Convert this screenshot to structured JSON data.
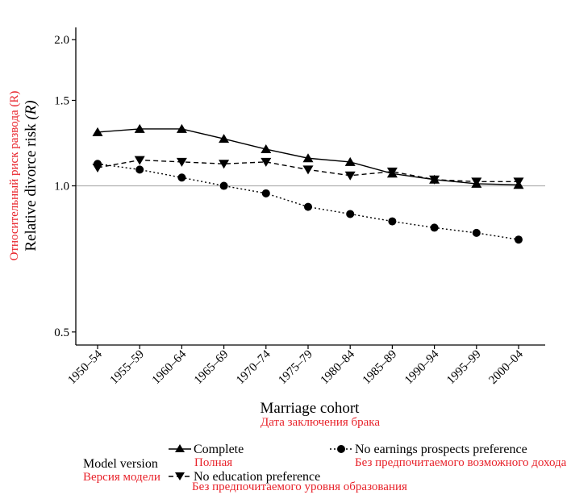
{
  "chart_data": {
    "type": "line",
    "title": "",
    "xlabel": "Marriage cohort",
    "xlabel_ru": "Дата заключения брака",
    "ylabel": "Relative divorce risk",
    "ylabel_symbol": "(R)",
    "ylabel_ru": "Относительный риск развода (R)",
    "y_scale": "log",
    "ylim": [
      0.47,
      2.12
    ],
    "yticks": [
      0.5,
      1.0,
      1.5,
      2.0
    ],
    "ytick_labels": [
      "0.5",
      "1.0",
      "1.5",
      "2.0"
    ],
    "reference_line": 1.0,
    "grid": false,
    "categories": [
      "1950–54",
      "1955–59",
      "1960–64",
      "1965–69",
      "1970–74",
      "1975–79",
      "1980–84",
      "1985–89",
      "1990–94",
      "1995–99",
      "2000–04"
    ],
    "legend_title": "Model version",
    "legend_title_ru": "Версия модели",
    "legend_position": "bottom",
    "series": [
      {
        "name": "Complete",
        "name_ru": "Полная",
        "line_style": "solid",
        "marker": "triangle-up",
        "values": [
          1.29,
          1.31,
          1.31,
          1.25,
          1.19,
          1.14,
          1.12,
          1.06,
          1.03,
          1.01,
          1.005
        ]
      },
      {
        "name": "No education preference",
        "name_ru": "Без предпочитаемого уровня образования",
        "line_style": "dashed",
        "marker": "triangle-down",
        "values": [
          1.09,
          1.13,
          1.12,
          1.11,
          1.12,
          1.08,
          1.05,
          1.07,
          1.03,
          1.02,
          1.02
        ]
      },
      {
        "name": "No earnings prospects preference",
        "name_ru": "Без предпочитаемого возможного дохода",
        "line_style": "dotted",
        "marker": "circle",
        "values": [
          1.11,
          1.08,
          1.04,
          1.0,
          0.965,
          0.905,
          0.875,
          0.845,
          0.82,
          0.8,
          0.775
        ]
      }
    ]
  },
  "colors": {
    "ink": "#000000",
    "reference_line": "#b0b0b0",
    "translation": "#e8222a"
  }
}
